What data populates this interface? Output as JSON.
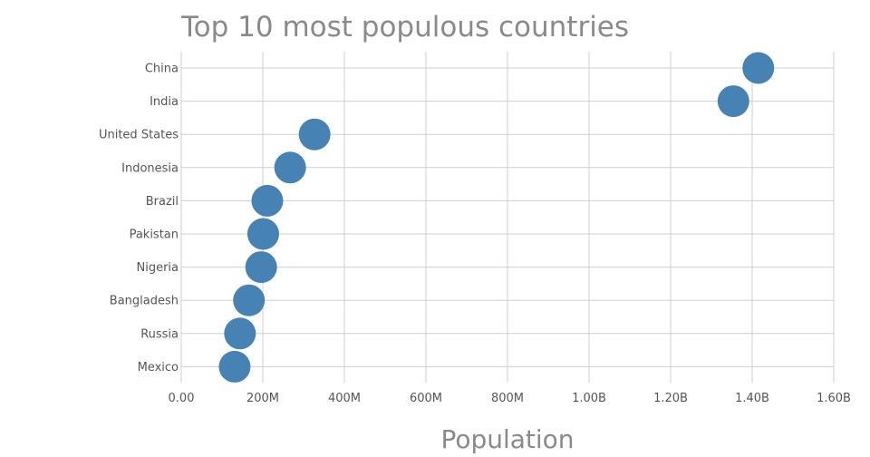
{
  "chart_data": {
    "type": "scatter",
    "title": "Top 10 most populous countries",
    "xlabel": "Population",
    "ylabel": "",
    "xlim": [
      0,
      1600000000
    ],
    "x_ticks": [
      0,
      200000000,
      400000000,
      600000000,
      800000000,
      1000000000,
      1200000000,
      1400000000,
      1600000000
    ],
    "x_tick_labels": [
      "0.00",
      "200M",
      "400M",
      "600M",
      "800M",
      "1.00B",
      "1.20B",
      "1.40B",
      "1.60B"
    ],
    "categories": [
      "China",
      "India",
      "United States",
      "Indonesia",
      "Brazil",
      "Pakistan",
      "Nigeria",
      "Bangladesh",
      "Russia",
      "Mexico"
    ],
    "values": [
      1415000000,
      1354000000,
      327000000,
      267000000,
      211000000,
      201000000,
      196000000,
      166000000,
      144000000,
      131000000
    ],
    "grid": true,
    "marker_color": "#4682b4"
  }
}
